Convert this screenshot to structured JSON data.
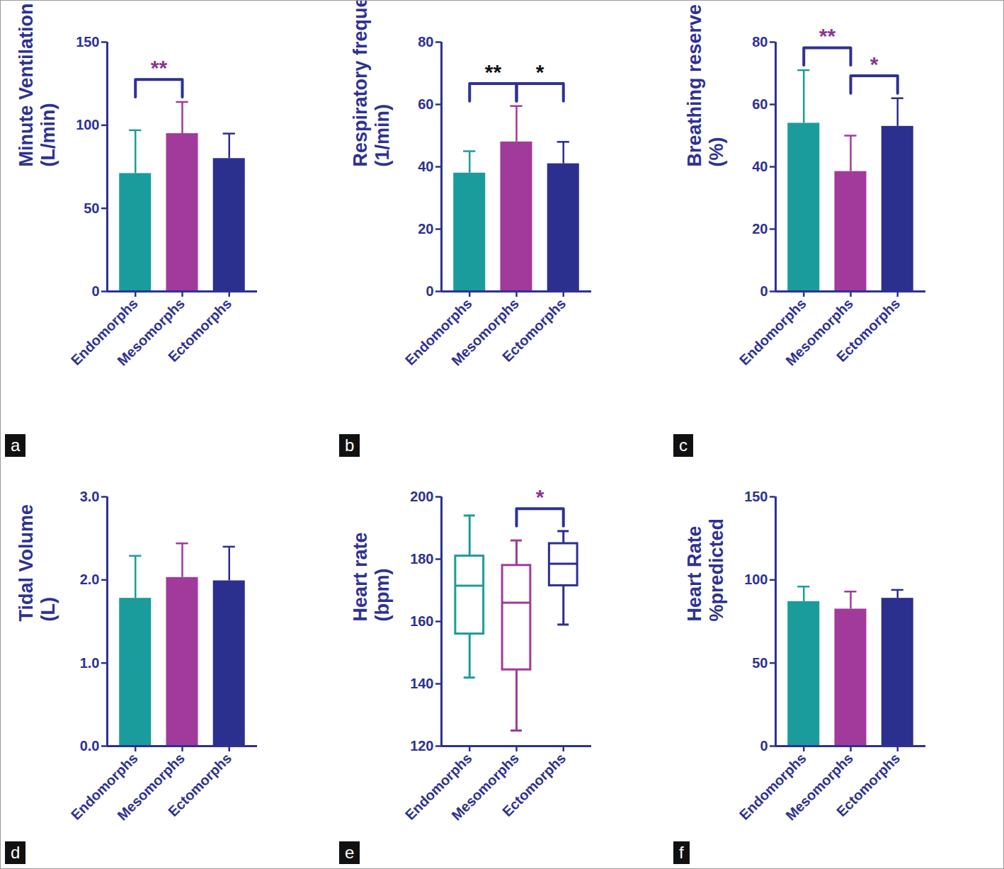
{
  "chart_data": [
    {
      "panel": "a",
      "type": "bar",
      "ylabel": [
        "Minute Ventilation",
        "(L/min)"
      ],
      "categories": [
        "Endomorphs",
        "Mesomorphs",
        "Ectomorphs"
      ],
      "values": [
        71,
        95,
        80
      ],
      "error": [
        26,
        19,
        15
      ],
      "colors": [
        "#1b9c9c",
        "#a23a9b",
        "#2b2f8e"
      ],
      "ylim": [
        0,
        150
      ],
      "yticks": [
        0,
        50,
        100,
        150
      ],
      "annotations": [
        {
          "from": "Endomorphs",
          "to": "Mesomorphs",
          "label": "**",
          "color": "#8a3594"
        }
      ]
    },
    {
      "panel": "b",
      "type": "bar",
      "ylabel": [
        "Respiratory frequency",
        "(1/min)"
      ],
      "categories": [
        "Endomorphs",
        "Mesomorphs",
        "Ectomorphs"
      ],
      "values": [
        38,
        48,
        41
      ],
      "error": [
        7,
        11.5,
        7
      ],
      "colors": [
        "#1b9c9c",
        "#a23a9b",
        "#2b2f8e"
      ],
      "ylim": [
        0,
        80
      ],
      "yticks": [
        0,
        20,
        40,
        60,
        80
      ],
      "annotations": [
        {
          "from": "Endomorphs",
          "to": "Mesomorphs",
          "label": "**",
          "color": "#111111"
        },
        {
          "from": "Mesomorphs",
          "to": "Ectomorphs",
          "label": "*",
          "color": "#111111"
        }
      ]
    },
    {
      "panel": "c",
      "type": "bar",
      "ylabel": [
        "Breathing reserve",
        "(%)"
      ],
      "categories": [
        "Endomorphs",
        "Mesomorphs",
        "Ectomorphs"
      ],
      "values": [
        54,
        38.5,
        53
      ],
      "error": [
        17,
        11.5,
        9
      ],
      "colors": [
        "#1b9c9c",
        "#a23a9b",
        "#2b2f8e"
      ],
      "ylim": [
        0,
        80
      ],
      "yticks": [
        0,
        20,
        40,
        60,
        80
      ],
      "annotations": [
        {
          "from": "Endomorphs",
          "to": "Mesomorphs",
          "label": "**",
          "color": "#8a3594"
        },
        {
          "from": "Mesomorphs",
          "to": "Ectomorphs",
          "label": "*",
          "color": "#8a3594"
        }
      ]
    },
    {
      "panel": "d",
      "type": "bar",
      "ylabel": [
        "Tidal Volume",
        "(L)"
      ],
      "categories": [
        "Endomorphs",
        "Mesomorphs",
        "Ectomorphs"
      ],
      "values": [
        1.78,
        2.03,
        1.99
      ],
      "error": [
        0.51,
        0.41,
        0.41
      ],
      "colors": [
        "#1b9c9c",
        "#a23a9b",
        "#2b2f8e"
      ],
      "ylim": [
        0,
        3
      ],
      "yticks": [
        0,
        1,
        2,
        3
      ],
      "annotations": []
    },
    {
      "panel": "e",
      "type": "box",
      "ylabel": [
        "Heart rate",
        "(bpm)"
      ],
      "categories": [
        "Endomorphs",
        "Mesomorphs",
        "Ectomorphs"
      ],
      "boxes": [
        {
          "min": 142,
          "q1": 156,
          "median": 171.5,
          "q3": 181,
          "max": 194
        },
        {
          "min": 125,
          "q1": 144.5,
          "median": 166,
          "q3": 178,
          "max": 186
        },
        {
          "min": 159,
          "q1": 171.5,
          "median": 178.5,
          "q3": 185,
          "max": 189
        }
      ],
      "colors": [
        "#1b9c9c",
        "#a23a9b",
        "#2b2f8e"
      ],
      "ylim": [
        120,
        200
      ],
      "yticks": [
        120,
        140,
        160,
        180,
        200
      ],
      "annotations": [
        {
          "from": "Mesomorphs",
          "to": "Ectomorphs",
          "label": "*",
          "color": "#8a3594"
        }
      ]
    },
    {
      "panel": "f",
      "type": "bar",
      "ylabel": [
        "Heart Rate",
        "%predicted"
      ],
      "categories": [
        "Endomorphs",
        "Mesomorphs",
        "Ectomorphs"
      ],
      "values": [
        87,
        82.5,
        89
      ],
      "error": [
        9,
        10.5,
        5
      ],
      "colors": [
        "#1b9c9c",
        "#a23a9b",
        "#2b2f8e"
      ],
      "ylim": [
        0,
        150
      ],
      "yticks": [
        0,
        50,
        100,
        150
      ],
      "annotations": []
    }
  ]
}
